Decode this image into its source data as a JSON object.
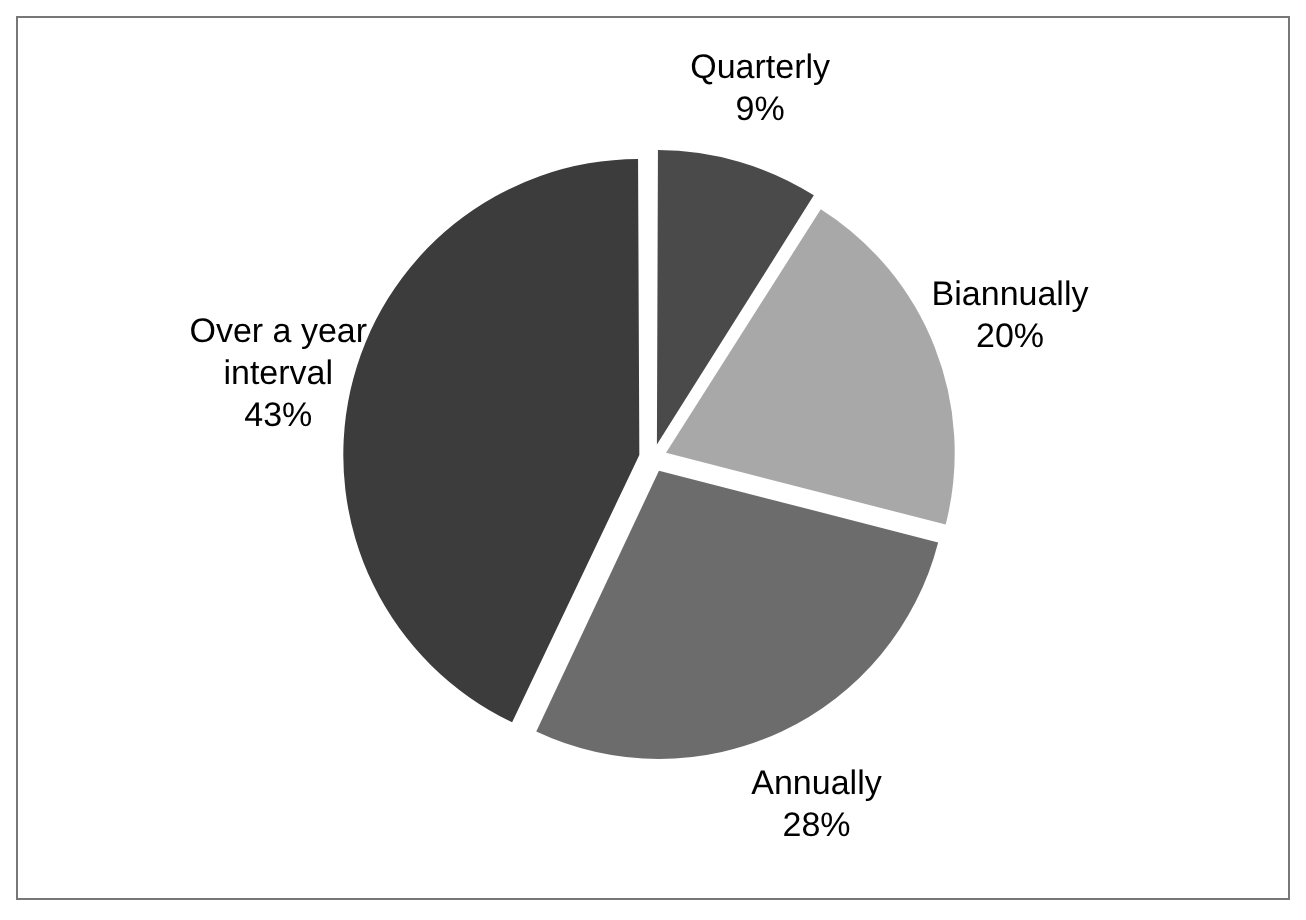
{
  "chart_data": {
    "type": "pie",
    "categories": [
      "Quarterly",
      "Biannually",
      "Annually",
      "Over a year interval"
    ],
    "values": [
      9,
      20,
      28,
      43
    ],
    "colors": [
      "#4a4a4a",
      "#a8a8a8",
      "#6c6c6c",
      "#3c3c3c"
    ],
    "value_labels": [
      "9%",
      "20%",
      "28%",
      "43%"
    ],
    "legend": false
  }
}
